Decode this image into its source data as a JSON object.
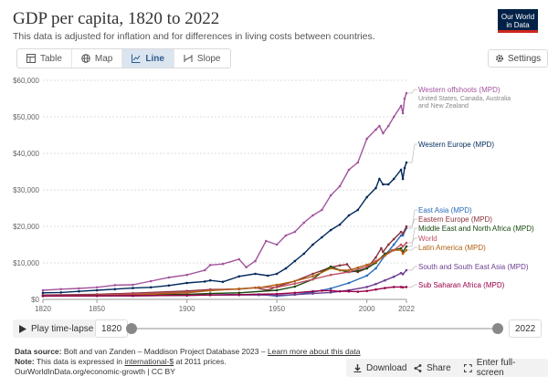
{
  "header": {
    "title": "GDP per capita, 1820 to 2022",
    "subtitle": "This data is adjusted for inflation and for differences in living costs between countries.",
    "logo_line1": "Our World",
    "logo_line2": "in Data"
  },
  "tabs": [
    {
      "label": "Table",
      "icon": "table-icon"
    },
    {
      "label": "Map",
      "icon": "globe-icon"
    },
    {
      "label": "Line",
      "icon": "line-chart-icon",
      "active": true
    },
    {
      "label": "Slope",
      "icon": "slope-icon"
    }
  ],
  "settings_label": "Settings",
  "chart_data": {
    "type": "line",
    "title": "GDP per capita, 1820 to 2022",
    "ylim": [
      0,
      60000
    ],
    "xlim": [
      1820,
      2022
    ],
    "y_ticks": [
      "$0",
      "$10,000",
      "$20,000",
      "$30,000",
      "$40,000",
      "$50,000",
      "$60,000"
    ],
    "y_tick_values": [
      0,
      10000,
      20000,
      30000,
      40000,
      50000,
      60000
    ],
    "x_ticks": [
      "1820",
      "1850",
      "1900",
      "1950",
      "2000",
      "2022"
    ],
    "x_tick_values": [
      1820,
      1850,
      1900,
      1950,
      2000,
      2022
    ],
    "grid": "horizontal dotted",
    "legend": "right, labels at line ends",
    "series": [
      {
        "name": "Western offshoots (MPD)",
        "sublabel": "United States, Canada, Australia and New Zealand",
        "color": "#a2559c",
        "points": [
          [
            1820,
            2500
          ],
          [
            1830,
            2800
          ],
          [
            1840,
            3000
          ],
          [
            1850,
            3300
          ],
          [
            1860,
            3900
          ],
          [
            1870,
            4000
          ],
          [
            1880,
            5000
          ],
          [
            1890,
            6000
          ],
          [
            1900,
            6700
          ],
          [
            1910,
            8000
          ],
          [
            1913,
            9400
          ],
          [
            1920,
            9700
          ],
          [
            1929,
            11000
          ],
          [
            1933,
            8800
          ],
          [
            1938,
            10500
          ],
          [
            1944,
            16000
          ],
          [
            1950,
            15000
          ],
          [
            1955,
            17500
          ],
          [
            1960,
            18500
          ],
          [
            1965,
            21000
          ],
          [
            1970,
            23000
          ],
          [
            1975,
            24500
          ],
          [
            1980,
            28500
          ],
          [
            1985,
            31000
          ],
          [
            1990,
            35500
          ],
          [
            1995,
            37500
          ],
          [
            2000,
            44000
          ],
          [
            2005,
            46500
          ],
          [
            2007,
            47500
          ],
          [
            2009,
            45500
          ],
          [
            2012,
            47500
          ],
          [
            2015,
            50000
          ],
          [
            2019,
            53000
          ],
          [
            2020,
            51000
          ],
          [
            2021,
            55000
          ],
          [
            2022,
            56500
          ]
        ]
      },
      {
        "name": "Western Europe (MPD)",
        "color": "#00295b",
        "points": [
          [
            1820,
            1800
          ],
          [
            1830,
            1900
          ],
          [
            1840,
            2200
          ],
          [
            1850,
            2500
          ],
          [
            1860,
            2800
          ],
          [
            1870,
            3100
          ],
          [
            1880,
            3300
          ],
          [
            1890,
            3800
          ],
          [
            1900,
            4500
          ],
          [
            1910,
            4900
          ],
          [
            1913,
            5200
          ],
          [
            1920,
            4800
          ],
          [
            1929,
            6300
          ],
          [
            1938,
            7000
          ],
          [
            1945,
            6500
          ],
          [
            1950,
            7000
          ],
          [
            1955,
            8500
          ],
          [
            1960,
            10500
          ],
          [
            1965,
            12500
          ],
          [
            1970,
            15000
          ],
          [
            1975,
            17000
          ],
          [
            1980,
            19000
          ],
          [
            1985,
            20500
          ],
          [
            1990,
            23000
          ],
          [
            1995,
            24500
          ],
          [
            2000,
            28000
          ],
          [
            2005,
            30500
          ],
          [
            2007,
            33000
          ],
          [
            2009,
            31500
          ],
          [
            2012,
            31500
          ],
          [
            2015,
            33000
          ],
          [
            2019,
            35500
          ],
          [
            2020,
            33000
          ],
          [
            2021,
            36000
          ],
          [
            2022,
            37500
          ]
        ]
      },
      {
        "name": "East Asia (MPD)",
        "color": "#286bbb",
        "points": [
          [
            1820,
            1000
          ],
          [
            1850,
            1000
          ],
          [
            1870,
            1000
          ],
          [
            1900,
            1100
          ],
          [
            1913,
            1200
          ],
          [
            1929,
            1300
          ],
          [
            1940,
            1400
          ],
          [
            1950,
            900
          ],
          [
            1960,
            1300
          ],
          [
            1970,
            2000
          ],
          [
            1980,
            3000
          ],
          [
            1990,
            4500
          ],
          [
            2000,
            6500
          ],
          [
            2005,
            8500
          ],
          [
            2010,
            12000
          ],
          [
            2015,
            15000
          ],
          [
            2019,
            17500
          ],
          [
            2020,
            17500
          ],
          [
            2022,
            19500
          ]
        ]
      },
      {
        "name": "Eastern Europe (MPD)",
        "color": "#883039",
        "points": [
          [
            1820,
            1200
          ],
          [
            1850,
            1400
          ],
          [
            1870,
            1700
          ],
          [
            1900,
            2300
          ],
          [
            1913,
            2700
          ],
          [
            1929,
            2800
          ],
          [
            1938,
            3200
          ],
          [
            1945,
            2500
          ],
          [
            1950,
            3500
          ],
          [
            1960,
            5000
          ],
          [
            1970,
            7000
          ],
          [
            1980,
            8800
          ],
          [
            1985,
            9300
          ],
          [
            1989,
            9600
          ],
          [
            1992,
            7800
          ],
          [
            1995,
            7500
          ],
          [
            2000,
            8500
          ],
          [
            2005,
            11500
          ],
          [
            2008,
            14000
          ],
          [
            2009,
            13000
          ],
          [
            2012,
            15000
          ],
          [
            2015,
            16500
          ],
          [
            2019,
            18500
          ],
          [
            2020,
            18000
          ],
          [
            2022,
            20000
          ]
        ]
      },
      {
        "name": "Middle East and North Africa (MPD)",
        "color": "#18470f",
        "points": [
          [
            1820,
            1000
          ],
          [
            1850,
            1100
          ],
          [
            1870,
            1200
          ],
          [
            1900,
            1400
          ],
          [
            1913,
            1600
          ],
          [
            1929,
            1800
          ],
          [
            1950,
            2500
          ],
          [
            1960,
            3500
          ],
          [
            1970,
            5500
          ],
          [
            1975,
            7500
          ],
          [
            1980,
            9000
          ],
          [
            1985,
            8000
          ],
          [
            1990,
            7500
          ],
          [
            1995,
            7800
          ],
          [
            2000,
            8500
          ],
          [
            2005,
            10000
          ],
          [
            2010,
            12500
          ],
          [
            2015,
            13500
          ],
          [
            2019,
            14000
          ],
          [
            2020,
            13000
          ],
          [
            2022,
            14500
          ]
        ]
      },
      {
        "name": "World",
        "color": "#c15065",
        "points": [
          [
            1820,
            1100
          ],
          [
            1850,
            1200
          ],
          [
            1870,
            1500
          ],
          [
            1900,
            2000
          ],
          [
            1913,
            2500
          ],
          [
            1929,
            2900
          ],
          [
            1940,
            3300
          ],
          [
            1950,
            3300
          ],
          [
            1960,
            4300
          ],
          [
            1970,
            5500
          ],
          [
            1980,
            6700
          ],
          [
            1990,
            7500
          ],
          [
            2000,
            9000
          ],
          [
            2005,
            10500
          ],
          [
            2010,
            12000
          ],
          [
            2015,
            13500
          ],
          [
            2019,
            15000
          ],
          [
            2020,
            14500
          ],
          [
            2022,
            15500
          ]
        ]
      },
      {
        "name": "Latin America (MPD)",
        "color": "#b16214",
        "points": [
          [
            1820,
            1000
          ],
          [
            1850,
            1100
          ],
          [
            1870,
            1200
          ],
          [
            1900,
            1800
          ],
          [
            1913,
            2400
          ],
          [
            1929,
            2900
          ],
          [
            1940,
            3200
          ],
          [
            1950,
            4000
          ],
          [
            1960,
            5000
          ],
          [
            1970,
            6300
          ],
          [
            1980,
            8500
          ],
          [
            1985,
            8000
          ],
          [
            1990,
            8000
          ],
          [
            1995,
            8700
          ],
          [
            2000,
            9500
          ],
          [
            2005,
            10200
          ],
          [
            2010,
            12000
          ],
          [
            2014,
            13500
          ],
          [
            2019,
            13500
          ],
          [
            2020,
            12500
          ],
          [
            2022,
            13500
          ]
        ]
      },
      {
        "name": "South and South East Asia (MPD)",
        "color": "#6d3e91",
        "points": [
          [
            1820,
            1000
          ],
          [
            1850,
            1000
          ],
          [
            1870,
            1000
          ],
          [
            1900,
            1100
          ],
          [
            1913,
            1200
          ],
          [
            1929,
            1200
          ],
          [
            1940,
            1200
          ],
          [
            1950,
            1100
          ],
          [
            1960,
            1300
          ],
          [
            1970,
            1600
          ],
          [
            1980,
            1900
          ],
          [
            1990,
            2500
          ],
          [
            2000,
            3400
          ],
          [
            2005,
            4200
          ],
          [
            2010,
            5200
          ],
          [
            2015,
            6200
          ],
          [
            2019,
            7200
          ],
          [
            2020,
            6900
          ],
          [
            2022,
            8000
          ]
        ]
      },
      {
        "name": "Sub Saharan Africa (MPD)",
        "color": "#970046",
        "points": [
          [
            1820,
            900
          ],
          [
            1850,
            950
          ],
          [
            1870,
            1000
          ],
          [
            1900,
            1100
          ],
          [
            1913,
            1200
          ],
          [
            1929,
            1300
          ],
          [
            1950,
            1500
          ],
          [
            1960,
            1800
          ],
          [
            1970,
            2200
          ],
          [
            1975,
            2400
          ],
          [
            1980,
            2400
          ],
          [
            1985,
            2200
          ],
          [
            1990,
            2200
          ],
          [
            1995,
            2100
          ],
          [
            2000,
            2300
          ],
          [
            2005,
            2700
          ],
          [
            2010,
            3100
          ],
          [
            2015,
            3400
          ],
          [
            2019,
            3400
          ],
          [
            2020,
            3300
          ],
          [
            2022,
            3400
          ]
        ]
      }
    ]
  },
  "controls": {
    "play_label": "Play time-lapse",
    "start_year": "1820",
    "end_year": "2022"
  },
  "footer": {
    "source_label": "Data source:",
    "source_text": "Bolt and van Zanden – Maddison Project Database 2023 –",
    "source_link": "Learn more about this data",
    "note_label": "Note:",
    "note_text_1": "This data is expressed in",
    "note_link": "international-$",
    "note_text_2": "at 2011 prices.",
    "url_line": "OurWorldInData.org/economic-growth | CC BY"
  },
  "buttons": {
    "download": "Download",
    "share": "Share",
    "fullscreen": "Enter full-screen"
  }
}
